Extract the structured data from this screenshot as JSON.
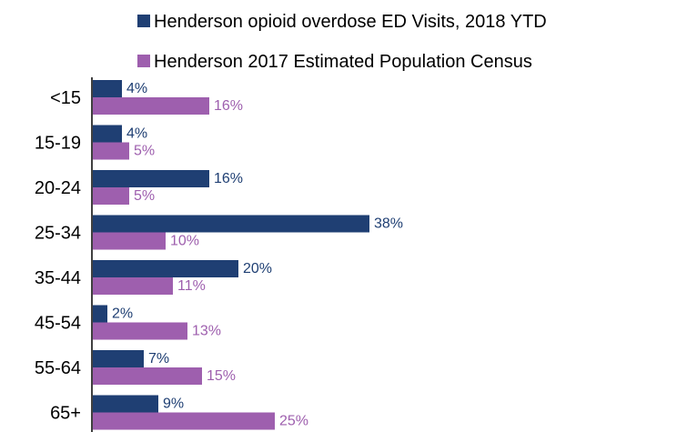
{
  "chart_data": {
    "type": "bar",
    "orientation": "horizontal",
    "categories": [
      "<15",
      "15-19",
      "20-24",
      "25-34",
      "35-44",
      "45-54",
      "55-64",
      "65+"
    ],
    "series": [
      {
        "name": "Henderson opioid overdose ED Visits, 2018 YTD",
        "color": "#1f3f73",
        "values": [
          4,
          4,
          16,
          38,
          20,
          2,
          7,
          9
        ],
        "labels": [
          "4%",
          "4%",
          "16%",
          "38%",
          "20%",
          "2%",
          "7%",
          "9%"
        ]
      },
      {
        "name": "Henderson 2017 Estimated Population Census",
        "color": "#9e5fae",
        "values": [
          16,
          5,
          5,
          10,
          11,
          13,
          15,
          25
        ],
        "labels": [
          "16%",
          "5%",
          "5%",
          "10%",
          "11%",
          "13%",
          "15%",
          "25%"
        ]
      }
    ],
    "xlim": [
      0,
      40
    ],
    "legend_position": "top",
    "grid": false,
    "title": "",
    "xlabel": "",
    "ylabel": ""
  }
}
